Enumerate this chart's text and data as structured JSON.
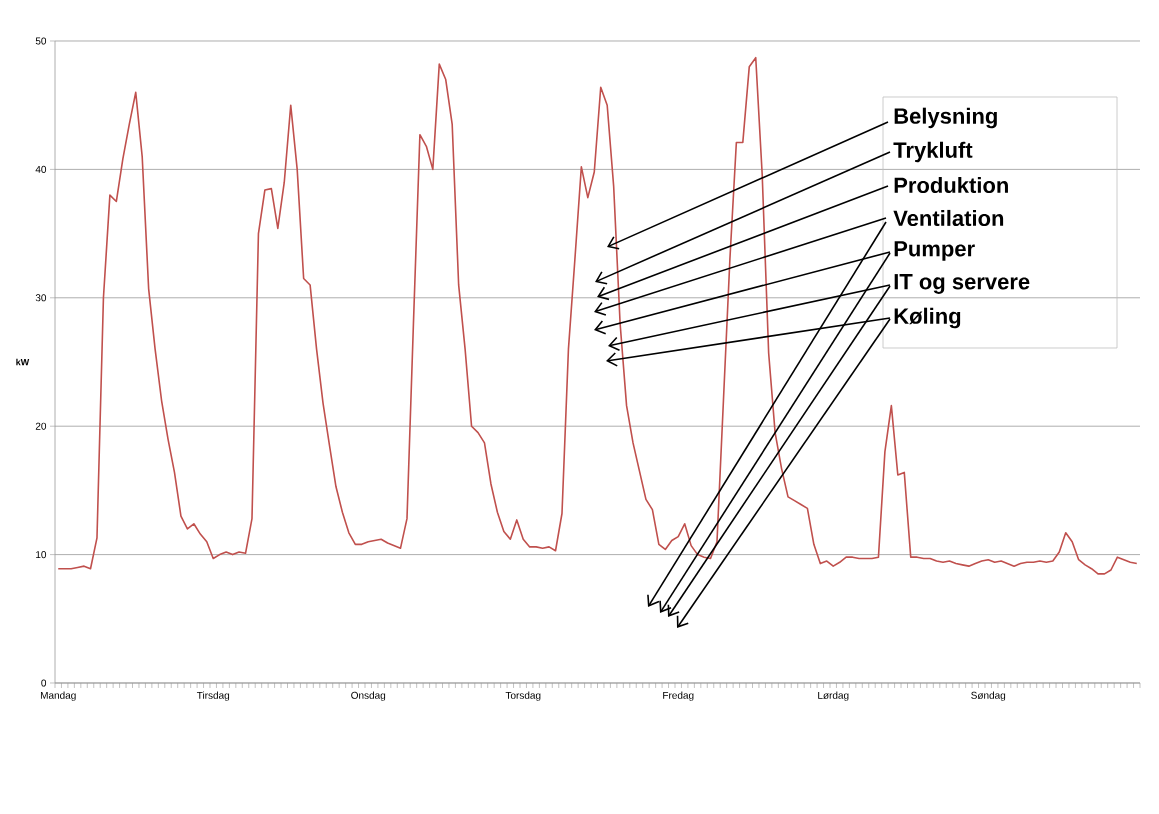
{
  "chart_data": {
    "type": "line",
    "ylabel": "kW",
    "categories": [
      "Mandag",
      null,
      null,
      null,
      null,
      null,
      null,
      null,
      null,
      null,
      null,
      null,
      null,
      null,
      null,
      null,
      null,
      null,
      null,
      null,
      null,
      null,
      null,
      null,
      "Tirsdag",
      null,
      null,
      null,
      null,
      null,
      null,
      null,
      null,
      null,
      null,
      null,
      null,
      null,
      null,
      null,
      null,
      null,
      null,
      null,
      null,
      null,
      null,
      null,
      "Onsdag",
      null,
      null,
      null,
      null,
      null,
      null,
      null,
      null,
      null,
      null,
      null,
      null,
      null,
      null,
      null,
      null,
      null,
      null,
      null,
      null,
      null,
      null,
      null,
      "Torsdag",
      null,
      null,
      null,
      null,
      null,
      null,
      null,
      null,
      null,
      null,
      null,
      null,
      null,
      null,
      null,
      null,
      null,
      null,
      null,
      null,
      null,
      null,
      null,
      "Fredag",
      null,
      null,
      null,
      null,
      null,
      null,
      null,
      null,
      null,
      null,
      null,
      null,
      null,
      null,
      null,
      null,
      null,
      null,
      null,
      null,
      null,
      null,
      null,
      "Lørdag",
      null,
      null,
      null,
      null,
      null,
      null,
      null,
      null,
      null,
      null,
      null,
      null,
      null,
      null,
      null,
      null,
      null,
      null,
      null,
      null,
      null,
      null,
      null,
      "Søndag",
      null,
      null,
      null,
      null,
      null,
      null,
      null,
      null,
      null,
      null,
      null,
      null,
      null,
      null,
      null,
      null,
      null,
      null,
      null,
      null,
      null,
      null,
      null
    ],
    "series": [
      {
        "color": "#c0504d",
        "values": [
          8.9,
          8.9,
          8.9,
          9.0,
          9.1,
          8.9,
          11.3,
          30,
          38,
          37.5,
          40.8,
          43.5,
          46,
          41,
          30.7,
          26,
          22,
          19,
          16.4,
          13,
          12,
          12.4,
          11.6,
          11,
          9.7,
          10.0,
          10.2,
          10.0,
          10.2,
          10.1,
          12.8,
          35,
          38.4,
          38.5,
          35.4,
          39,
          45,
          40,
          31.5,
          31,
          26,
          21.8,
          18.5,
          15.3,
          13.3,
          11.7,
          10.8,
          10.8,
          11.0,
          11.1,
          11.2,
          10.9,
          10.7,
          10.5,
          12.8,
          28,
          42.7,
          41.8,
          40,
          48.2,
          47,
          43.5,
          31,
          26,
          20,
          19.5,
          18.7,
          15.5,
          13.3,
          11.8,
          11.2,
          12.7,
          11.2,
          10.6,
          10.6,
          10.5,
          10.6,
          10.3,
          13.2,
          26,
          33,
          40.2,
          37.8,
          39.8,
          46.4,
          45,
          38.7,
          28,
          21.6,
          18.7,
          16.5,
          14.3,
          13.5,
          10.8,
          10.4,
          11.1,
          11.4,
          12.4,
          10.7,
          10.0,
          9.8,
          9.7,
          11,
          22,
          33,
          42.1,
          42.1,
          48,
          48.7,
          39.6,
          25.7,
          19.5,
          16.7,
          14.5,
          14.2,
          13.9,
          13.6,
          10.8,
          9.3,
          9.5,
          9.1,
          9.4,
          9.8,
          9.8,
          9.7,
          9.7,
          9.7,
          9.8,
          18,
          21.6,
          16.2,
          16.4,
          9.8,
          9.8,
          9.7,
          9.7,
          9.5,
          9.4,
          9.5,
          9.3,
          9.2,
          9.1,
          9.3,
          9.5,
          9.6,
          9.4,
          9.5,
          9.3,
          9.1,
          9.3,
          9.4,
          9.4,
          9.5,
          9.4,
          9.5,
          10.2,
          11.7,
          11.0,
          9.6,
          9.2,
          8.9,
          8.5,
          8.5,
          8.8,
          9.8,
          9.6,
          9.4,
          9.3
        ]
      }
    ],
    "ylim": [
      0,
      50
    ],
    "yticks": [
      0,
      10,
      20,
      30,
      40,
      50
    ],
    "grid": "y",
    "marker": "none",
    "line_style": "solid",
    "annotations": [
      "Belysning",
      "Trykluft",
      "Produktion",
      "Ventilation",
      "Pumper",
      "IT og servere",
      "Køling"
    ]
  }
}
